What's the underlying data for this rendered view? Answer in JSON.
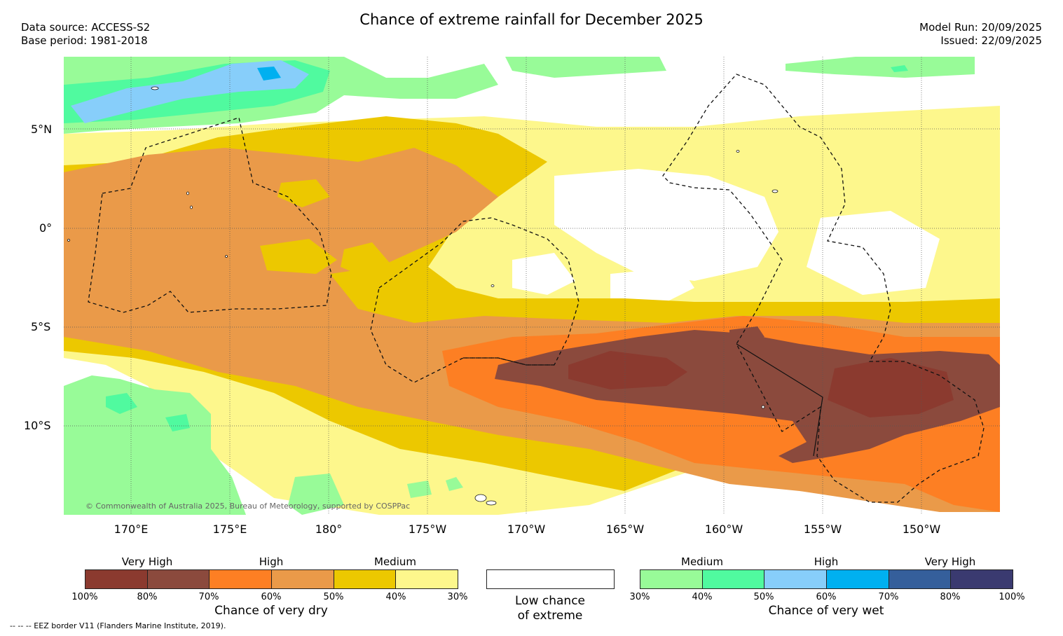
{
  "title": "Chance of extreme rainfall for December 2025",
  "meta": {
    "data_source": "Data source: ACCESS-S2",
    "base_period": "Base period: 1981-2018",
    "model_run": "Model Run: 20/09/2025",
    "issued": "Issued: 22/09/2025"
  },
  "map": {
    "lat_labels": [
      "5°N",
      "0°",
      "5°S",
      "10°S"
    ],
    "lon_labels": [
      "170°E",
      "175°E",
      "180°",
      "175°W",
      "170°W",
      "165°W",
      "160°W",
      "155°W",
      "150°W"
    ],
    "copyright": "© Commonwealth of Australia 2025, Bureau of Meteorology, supported by COSPPac"
  },
  "legend": {
    "dry": {
      "categories": [
        "Very High",
        "High",
        "Medium"
      ],
      "ticks": [
        "100%",
        "80%",
        "70%",
        "60%",
        "50%",
        "40%",
        "30%"
      ],
      "colors": [
        "#8b3a2f",
        "#8b4a3d",
        "#fd7f23",
        "#ea9a49",
        "#ecc800",
        "#fdf78c"
      ],
      "caption": "Chance of very dry"
    },
    "neutral": {
      "color": "#ffffff",
      "caption_line1": "Low chance",
      "caption_line2": "of extreme"
    },
    "wet": {
      "categories": [
        "Medium",
        "High",
        "Very High"
      ],
      "ticks": [
        "30%",
        "40%",
        "50%",
        "60%",
        "70%",
        "80%",
        "100%"
      ],
      "colors": [
        "#98fb98",
        "#50fa9f",
        "#87cefa",
        "#00b0f0",
        "#355f9b",
        "#3a3a70"
      ],
      "caption": "Chance of very wet"
    },
    "eez_note": "--  --  -- EEZ border V11 (Flanders Marine Institute, 2019)."
  }
}
